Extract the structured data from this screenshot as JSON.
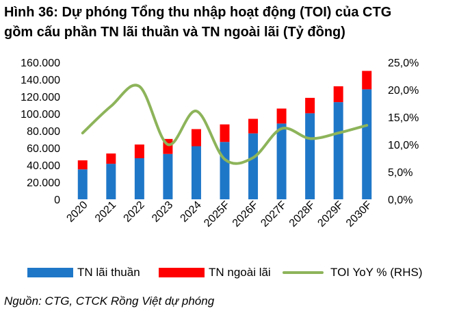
{
  "title_line1": "Hình 36: Dự phóng Tổng thu nhập hoạt động (TOI) của CTG",
  "title_line2": "gồm cấu phần TN lãi thuần và TN ngoài lãi (Tỷ đồng)",
  "source": "Nguồn: CTG, CTCK Rồng Việt dự phóng",
  "colors": {
    "interest": "#1f77c8",
    "noninterest": "#ff0000",
    "yoy": "#8db45a"
  },
  "chart_data": {
    "type": "bar",
    "stacked": true,
    "categories": [
      "2020",
      "2021",
      "2022",
      "2023",
      "2024",
      "2025F",
      "2026F",
      "2027F",
      "2028F",
      "2029F",
      "2030F"
    ],
    "series": [
      {
        "name": "TN lãi thuần",
        "axis": "left",
        "values": [
          35000,
          41500,
          48000,
          53000,
          62000,
          67000,
          77000,
          88500,
          100500,
          113500,
          128500
        ]
      },
      {
        "name": "TN ngoài lãi",
        "axis": "left",
        "values": [
          10500,
          12000,
          16000,
          17500,
          20000,
          20500,
          17000,
          17500,
          18000,
          18500,
          21500
        ]
      },
      {
        "name": "TOI YoY % (RHS)",
        "axis": "right",
        "type": "line",
        "values": [
          12.1,
          17.0,
          20.6,
          10.0,
          16.1,
          7.3,
          7.6,
          12.9,
          11.1,
          12.1,
          13.5
        ]
      }
    ],
    "left_axis": {
      "ylim": [
        0,
        160000
      ],
      "ticks": [
        "0",
        "20.000",
        "40.000",
        "60.000",
        "80.000",
        "100.000",
        "120.000",
        "140.000",
        "160.000"
      ]
    },
    "right_axis": {
      "ylim": [
        0,
        25
      ],
      "ticks": [
        "0,0%",
        "5,0%",
        "10,0%",
        "15,0%",
        "20,0%",
        "25,0%"
      ]
    },
    "grid": false,
    "legend_position": "bottom"
  }
}
